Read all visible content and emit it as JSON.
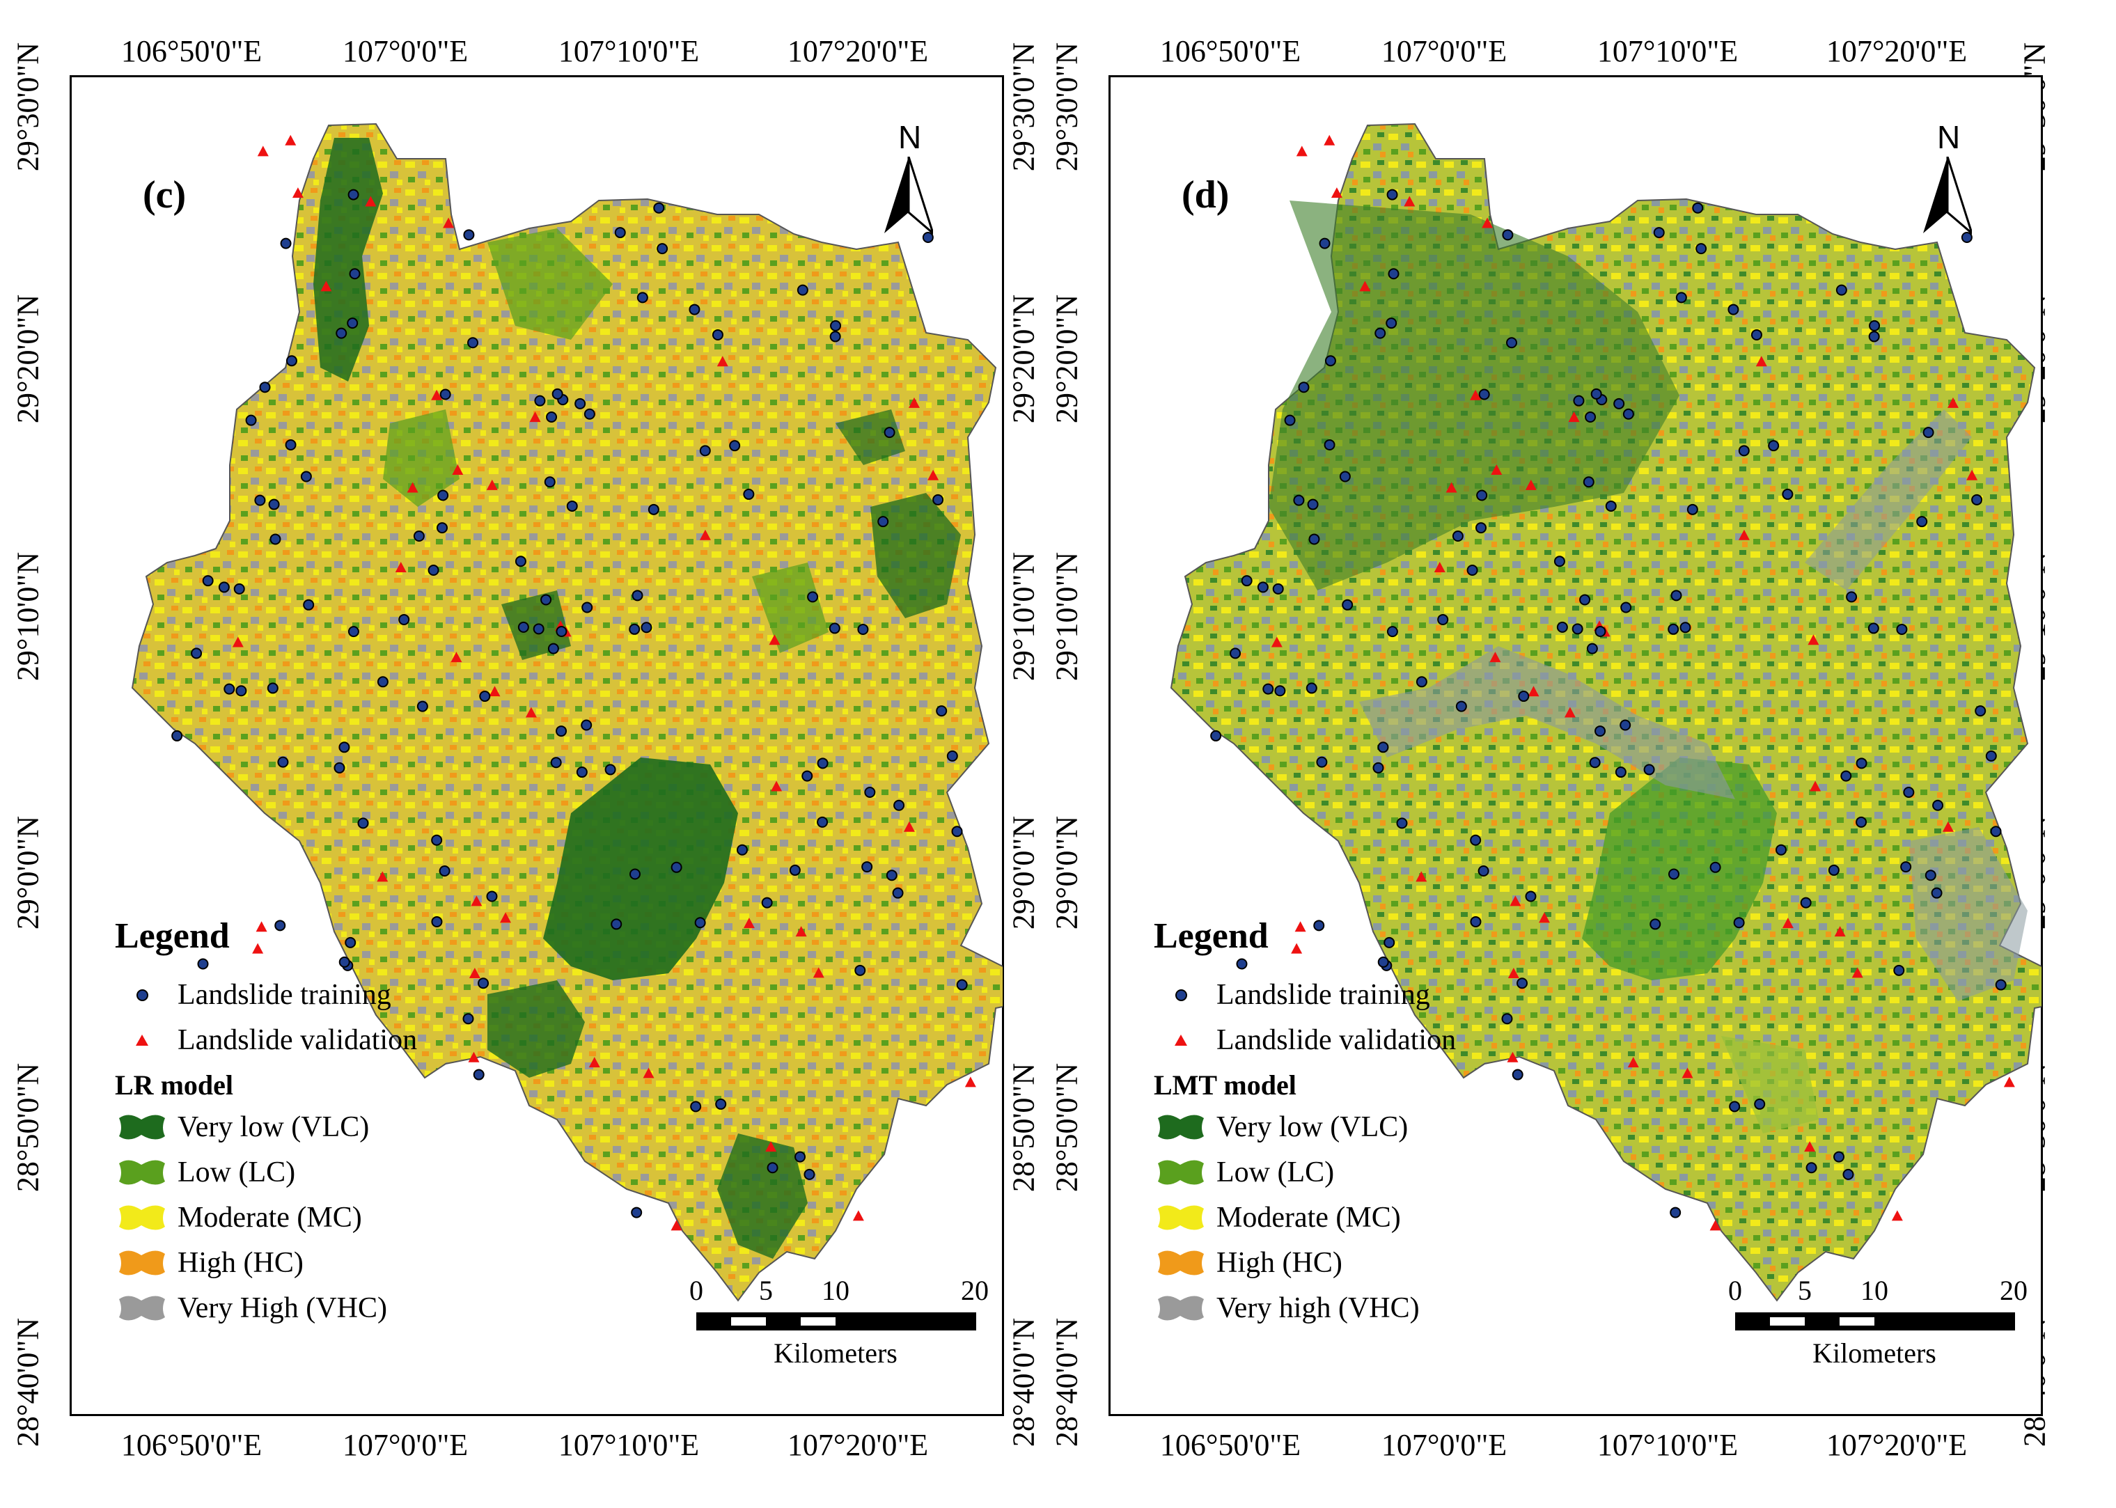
{
  "ticks": {
    "longitude": [
      "106°50'0\"E",
      "107°0'0\"E",
      "107°10'0\"E",
      "107°20'0\"E"
    ],
    "latitude": [
      "29°30'0\"N",
      "29°20'0\"N",
      "29°10'0\"N",
      "29°0'0\"N",
      "28°50'0\"N",
      "28°40'0\"N"
    ]
  },
  "panels": [
    {
      "label": "(c)",
      "north": "N",
      "legend_title": "Legend",
      "legend_points": [
        "Landslide training",
        "Landslide validation"
      ],
      "model_title": "LR model",
      "classes": [
        "Very low (VLC)",
        "Low (LC)",
        "Moderate (MC)",
        "High (HC)",
        "Very High (VHC)"
      ],
      "scale_numbers": [
        "0",
        "5",
        "10",
        "20"
      ],
      "scale_unit": "Kilometers"
    },
    {
      "label": "(d)",
      "north": "N",
      "legend_title": "Legend",
      "legend_points": [
        "Landslide training",
        "Landslide validation"
      ],
      "model_title": "LMT model",
      "classes": [
        "Very low (VLC)",
        "Low (LC)",
        "Moderate (MC)",
        "High (HC)",
        "Very high (VHC)"
      ],
      "scale_numbers": [
        "0",
        "5",
        "10",
        "20"
      ],
      "scale_unit": "Kilometers"
    }
  ],
  "class_colors": [
    "#1e6b1e",
    "#5aa01e",
    "#f2ea1a",
    "#f09a1a",
    "#9a9a9a"
  ],
  "point_colors": {
    "training": "#1f3f8f",
    "validation": "#ee1111"
  }
}
